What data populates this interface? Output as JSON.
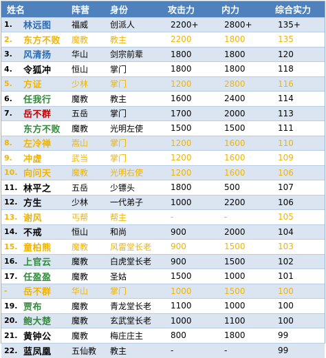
{
  "colors": {
    "header_bg": "#4f81bd",
    "stripe_bg": "#dbe5f1",
    "blue": "#2a6bb3",
    "red": "#c00000",
    "green": "#2e8b3a",
    "purple": "#7030a0",
    "gold": "#f0b400"
  },
  "headers": [
    "姓名",
    "阵营",
    "身份",
    "攻击力",
    "内力",
    "综合实力"
  ],
  "rows": [
    {
      "rank": "1.",
      "name": "林远图",
      "name_color": "blue",
      "faction": "福威",
      "role": "创派人",
      "attack": "2200+",
      "inner": "2800+",
      "total": "135+",
      "muted": false
    },
    {
      "rank": "2.",
      "name": "东方不败",
      "name_color": "blue",
      "faction": "魔教",
      "role": "教主",
      "attack": "2200",
      "inner": "1800",
      "total": "135",
      "muted": true
    },
    {
      "rank": "3.",
      "name": "风清扬",
      "name_color": "blue",
      "faction": "华山",
      "role": "剑宗前辈",
      "attack": "1800",
      "inner": "1800",
      "total": "120",
      "muted": false
    },
    {
      "rank": "4.",
      "name": "令狐冲",
      "name_color": "black",
      "faction": "恒山",
      "role": "掌门",
      "attack": "1800",
      "inner": "1800",
      "total": "118",
      "muted": false
    },
    {
      "rank": "5.",
      "name": "方证",
      "name_color": "red",
      "faction": "少林",
      "role": "掌门",
      "attack": "1200",
      "inner": "2800",
      "total": "116",
      "muted": true
    },
    {
      "rank": "6.",
      "name": "任我行",
      "name_color": "green",
      "faction": "魔教",
      "role": "教主",
      "attack": "1600",
      "inner": "2400",
      "total": "114",
      "muted": false
    },
    {
      "rank": "7.",
      "name": "岳不群",
      "name_color": "red",
      "faction": "五岳",
      "role": "掌门",
      "attack": "1700",
      "inner": "2000",
      "total": "113",
      "muted": false
    },
    {
      "rank": "",
      "name": "东方不败",
      "name_color": "green",
      "faction": "魔教",
      "role": "光明左使",
      "attack": "1500",
      "inner": "1500",
      "total": "111",
      "muted": false
    },
    {
      "rank": "8.",
      "name": "左冷禅",
      "name_color": "red",
      "faction": "嵩山",
      "role": "掌门",
      "attack": "1200",
      "inner": "1600",
      "total": "110",
      "muted": true
    },
    {
      "rank": "9.",
      "name": "冲虚",
      "name_color": "red",
      "faction": "武当",
      "role": "掌门",
      "attack": "1200",
      "inner": "1600",
      "total": "109",
      "muted": true
    },
    {
      "rank": "10.",
      "name": "向问天",
      "name_color": "green",
      "faction": "魔教",
      "role": "光明右使",
      "attack": "1200",
      "inner": "1600",
      "total": "106",
      "muted": true
    },
    {
      "rank": "11.",
      "name": "林平之",
      "name_color": "black",
      "faction": "五岳",
      "role": "少镖头",
      "attack": "1800",
      "inner": "500",
      "total": "107",
      "muted": false
    },
    {
      "rank": "12.",
      "name": "方生",
      "name_color": "black",
      "faction": "少林",
      "role": "一代弟子",
      "attack": "1000",
      "inner": "2200",
      "total": "106",
      "muted": false
    },
    {
      "rank": "13.",
      "name": "谢风",
      "name_color": "red",
      "faction": "丐帮",
      "role": "帮主",
      "attack": "-",
      "inner": "-",
      "total": "105",
      "muted": true
    },
    {
      "rank": "14.",
      "name": "不戒",
      "name_color": "black",
      "faction": "恒山",
      "role": "和尚",
      "attack": "900",
      "inner": "2000",
      "total": "104",
      "muted": false
    },
    {
      "rank": "15.",
      "name": "童柏熊",
      "name_color": "green",
      "faction": "魔教",
      "role": "风雷堂长老",
      "attack": "900",
      "inner": "1500",
      "total": "103",
      "muted": true
    },
    {
      "rank": "16.",
      "name": "上官云",
      "name_color": "green",
      "faction": "魔教",
      "role": "白虎堂长老",
      "attack": "900",
      "inner": "1500",
      "total": "102",
      "muted": false
    },
    {
      "rank": "17.",
      "name": "任盈盈",
      "name_color": "green",
      "faction": "魔教",
      "role": "圣姑",
      "attack": "1500",
      "inner": "1000",
      "total": "101",
      "muted": false
    },
    {
      "rank": "-",
      "name": "岳不群",
      "name_color": "purple",
      "faction": "华山",
      "role": "掌门",
      "attack": "1000",
      "inner": "1500",
      "total": "100",
      "muted": true
    },
    {
      "rank": "19.",
      "name": "贾布",
      "name_color": "green",
      "faction": "魔教",
      "role": "青龙堂长老",
      "attack": "1100",
      "inner": "1000",
      "total": "100",
      "muted": false
    },
    {
      "rank": "20.",
      "name": "鲍大楚",
      "name_color": "green",
      "faction": "魔教",
      "role": "玄武堂长老",
      "attack": "1000",
      "inner": "1100",
      "total": "100",
      "muted": false
    },
    {
      "rank": "21.",
      "name": "黄钟公",
      "name_color": "black",
      "faction": "魔教",
      "role": "梅庄庄主",
      "attack": "800",
      "inner": "1800",
      "total": "99",
      "muted": false
    },
    {
      "rank": "22.",
      "name": "蓝凤凰",
      "name_color": "black",
      "faction": "五仙教",
      "role": "教主",
      "attack": "-",
      "inner": "-",
      "total": "99",
      "muted": false
    }
  ]
}
